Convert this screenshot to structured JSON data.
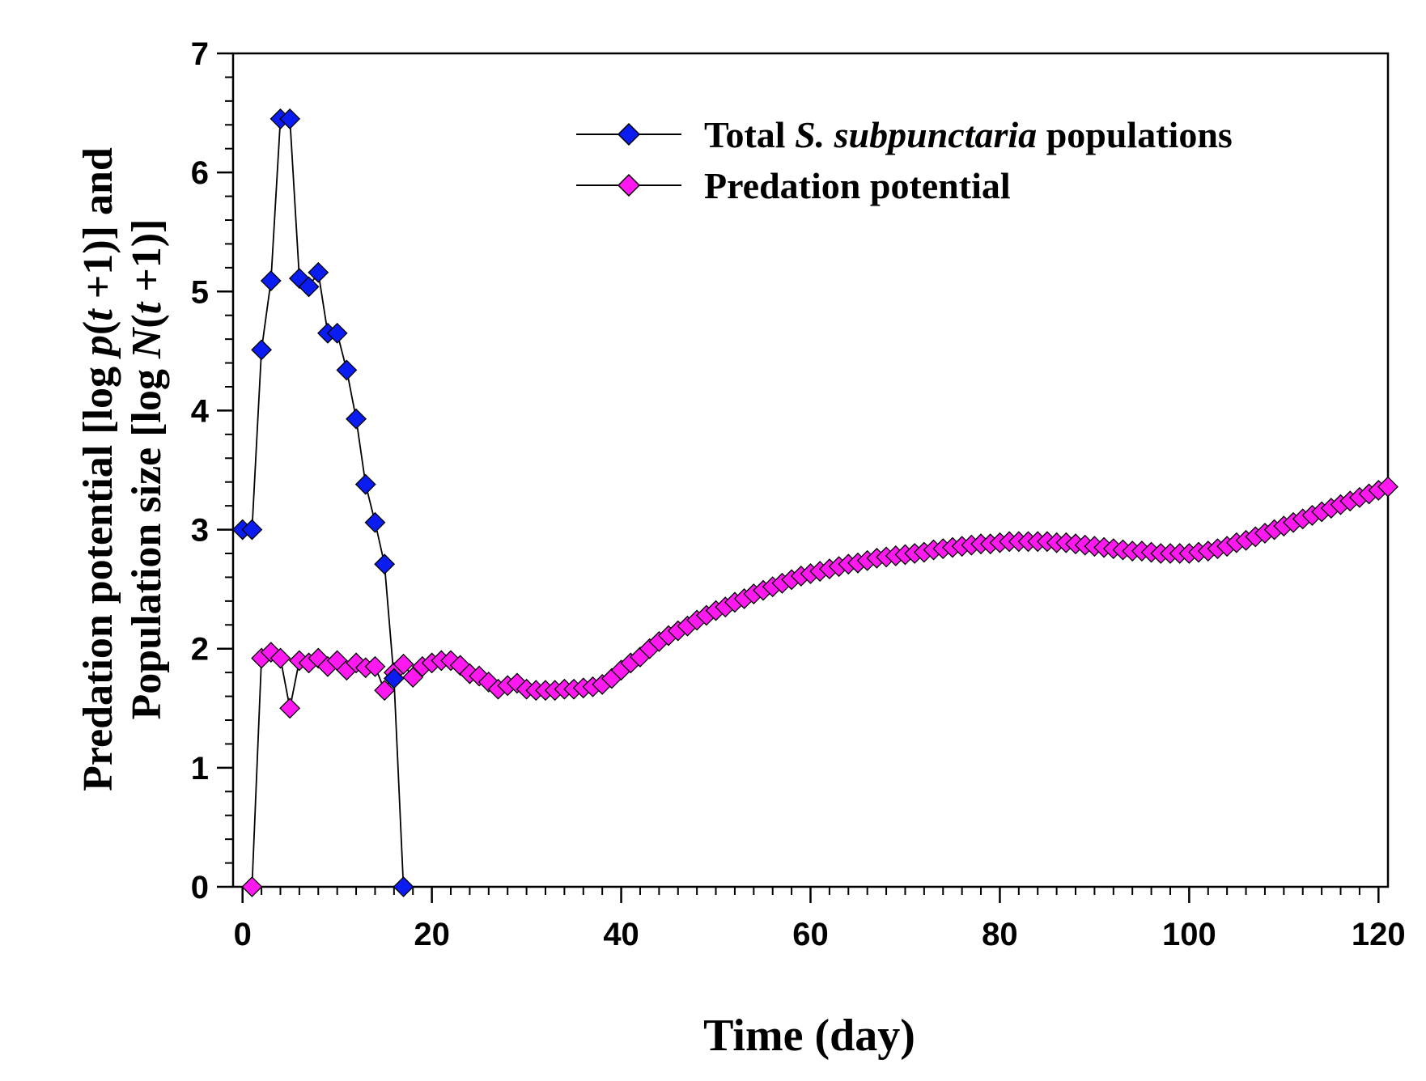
{
  "chart_data": {
    "type": "line",
    "xlabel": "Time (day)",
    "ylabel": {
      "line1": {
        "a": "Predation potential [log ",
        "b": "p",
        "c": "(",
        "d": "t",
        "e": " +1)] and"
      },
      "line2": {
        "a": "Population size [log ",
        "b": "N",
        "c": "(",
        "d": "t",
        "e": " +1)]"
      }
    },
    "xlim": [
      -1,
      121
    ],
    "ylim": [
      0,
      7
    ],
    "xticks": [
      0,
      20,
      40,
      60,
      80,
      100,
      120
    ],
    "yticks": [
      0,
      1,
      2,
      3,
      4,
      5,
      6,
      7
    ],
    "legend_position": "top-right",
    "series": [
      {
        "name": "Total S. subpunctaria populations",
        "legend": {
          "pre": "Total ",
          "italic": "S. subpunctaria",
          "post": " populations"
        },
        "color": "#0a1cf0",
        "x": [
          0,
          1,
          2,
          3,
          4,
          5,
          6,
          7,
          8,
          9,
          10,
          11,
          12,
          13,
          14,
          15,
          16,
          17
        ],
        "y": [
          3.0,
          3.0,
          4.51,
          5.09,
          6.45,
          6.45,
          5.11,
          5.04,
          5.16,
          4.65,
          4.65,
          4.34,
          3.93,
          3.38,
          3.06,
          2.71,
          1.75,
          0.0
        ]
      },
      {
        "name": "Predation potential",
        "legend": {
          "pre": "Predation potential",
          "italic": "",
          "post": ""
        },
        "color": "#ff19f0",
        "x": [
          1,
          2,
          3,
          4,
          5,
          6,
          7,
          8,
          9,
          10,
          11,
          12,
          13,
          14,
          15,
          16,
          17,
          18,
          19,
          20,
          21,
          22,
          23,
          24,
          25,
          26,
          27,
          28,
          29,
          30,
          31,
          32,
          33,
          34,
          35,
          36,
          37,
          38,
          39,
          40,
          41,
          42,
          43,
          44,
          45,
          46,
          47,
          48,
          49,
          50,
          51,
          52,
          53,
          54,
          55,
          56,
          57,
          58,
          59,
          60,
          61,
          62,
          63,
          64,
          65,
          66,
          67,
          68,
          69,
          70,
          71,
          72,
          73,
          74,
          75,
          76,
          77,
          78,
          79,
          80,
          81,
          82,
          83,
          84,
          85,
          86,
          87,
          88,
          89,
          90,
          91,
          92,
          93,
          94,
          95,
          96,
          97,
          98,
          99,
          100,
          101,
          102,
          103,
          104,
          105,
          106,
          107,
          108,
          109,
          110,
          111,
          112,
          113,
          114,
          115,
          116,
          117,
          118,
          119,
          120,
          121
        ],
        "y": [
          0.0,
          1.92,
          1.97,
          1.92,
          1.5,
          1.9,
          1.88,
          1.92,
          1.85,
          1.9,
          1.82,
          1.88,
          1.84,
          1.85,
          1.65,
          1.8,
          1.87,
          1.76,
          1.85,
          1.88,
          1.9,
          1.9,
          1.86,
          1.79,
          1.77,
          1.72,
          1.66,
          1.69,
          1.71,
          1.66,
          1.65,
          1.65,
          1.65,
          1.66,
          1.66,
          1.67,
          1.68,
          1.7,
          1.75,
          1.82,
          1.88,
          1.93,
          2.0,
          2.06,
          2.11,
          2.15,
          2.19,
          2.24,
          2.28,
          2.32,
          2.35,
          2.39,
          2.42,
          2.46,
          2.49,
          2.52,
          2.55,
          2.58,
          2.61,
          2.63,
          2.65,
          2.67,
          2.69,
          2.71,
          2.72,
          2.74,
          2.76,
          2.77,
          2.78,
          2.79,
          2.8,
          2.81,
          2.83,
          2.84,
          2.85,
          2.86,
          2.87,
          2.88,
          2.88,
          2.89,
          2.9,
          2.9,
          2.9,
          2.9,
          2.9,
          2.89,
          2.89,
          2.88,
          2.87,
          2.86,
          2.85,
          2.84,
          2.83,
          2.82,
          2.82,
          2.81,
          2.8,
          2.8,
          2.8,
          2.8,
          2.81,
          2.82,
          2.84,
          2.86,
          2.89,
          2.91,
          2.94,
          2.97,
          3.0,
          3.03,
          3.06,
          3.09,
          3.12,
          3.15,
          3.18,
          3.21,
          3.24,
          3.27,
          3.3,
          3.33,
          3.36
        ]
      }
    ]
  }
}
